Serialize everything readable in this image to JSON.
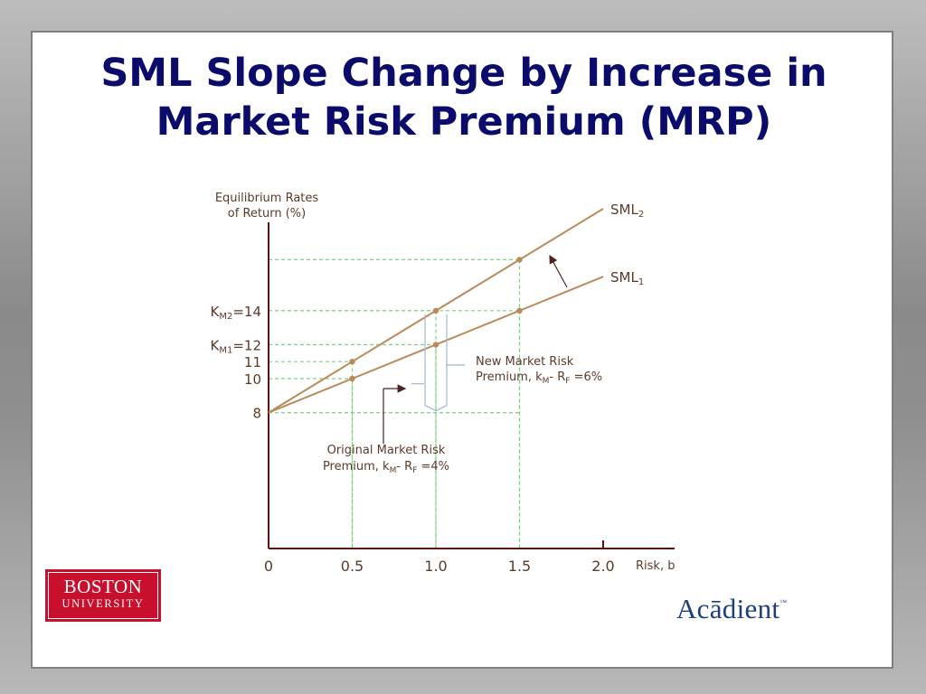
{
  "slide": {
    "title_line1": "SML Slope Change by Increase in",
    "title_line2": "Market Risk Premium (MRP)"
  },
  "chart_data": {
    "type": "line",
    "ylabel_line1": "Equilibrium Rates",
    "ylabel_line2": "of Return (%)",
    "xlabel": "Risk, b",
    "xlim": [
      0,
      2.4
    ],
    "ylim": [
      0,
      24
    ],
    "x_ticks": [
      {
        "value": 0,
        "label": "0"
      },
      {
        "value": 0.5,
        "label": "0.5"
      },
      {
        "value": 1.0,
        "label": "1.0"
      },
      {
        "value": 1.5,
        "label": "1.5"
      },
      {
        "value": 2.0,
        "label": "2.0"
      }
    ],
    "y_ticks": [
      {
        "value": 8,
        "label": "8"
      },
      {
        "value": 10,
        "label": "10"
      },
      {
        "value": 11,
        "label": "11"
      }
    ],
    "km_labels": [
      {
        "value": 14,
        "sub": "M2",
        "text": "=14"
      },
      {
        "value": 12,
        "sub": "M1",
        "text": "=12"
      }
    ],
    "series": [
      {
        "name": "SML",
        "name_sub": "1",
        "line": [
          [
            0,
            8
          ],
          [
            2.0,
            16
          ]
        ],
        "points": [
          [
            0.5,
            10
          ],
          [
            1.0,
            12
          ],
          [
            1.5,
            14
          ]
        ],
        "color": "#b98a5a"
      },
      {
        "name": "SML",
        "name_sub": "2",
        "line": [
          [
            0,
            8
          ],
          [
            2.0,
            20
          ]
        ],
        "points": [
          [
            0.5,
            11
          ],
          [
            1.0,
            14
          ],
          [
            1.5,
            17
          ]
        ],
        "color": "#b98a5a"
      }
    ],
    "grid": "dashed guides to points",
    "guide_color": "#7cd47c",
    "annotations": {
      "new_mrp_line1": "New Market Risk",
      "new_mrp_line2_a": "Premium, k",
      "new_mrp_line2_sub1": "M",
      "new_mrp_line2_b": "- R",
      "new_mrp_line2_sub2": "F",
      "new_mrp_line2_c": " =6%",
      "orig_mrp_line1": "Original Market Risk",
      "orig_mrp_line2_a": "Premium, k",
      "orig_mrp_line2_sub1": "M",
      "orig_mrp_line2_b": "- R",
      "orig_mrp_line2_sub2": "F",
      "orig_mrp_line2_c": " =4%"
    }
  },
  "logos": {
    "bu_line1": "BOSTON",
    "bu_line2": "UNIVERSITY",
    "acadient": "Acādient",
    "acadient_tm": "™"
  },
  "colors": {
    "title": "#0b0b6b",
    "line": "#b98a5a",
    "axis": "#5a1010",
    "bu_red": "#c8102e",
    "acadient_blue": "#1d3f7a"
  }
}
